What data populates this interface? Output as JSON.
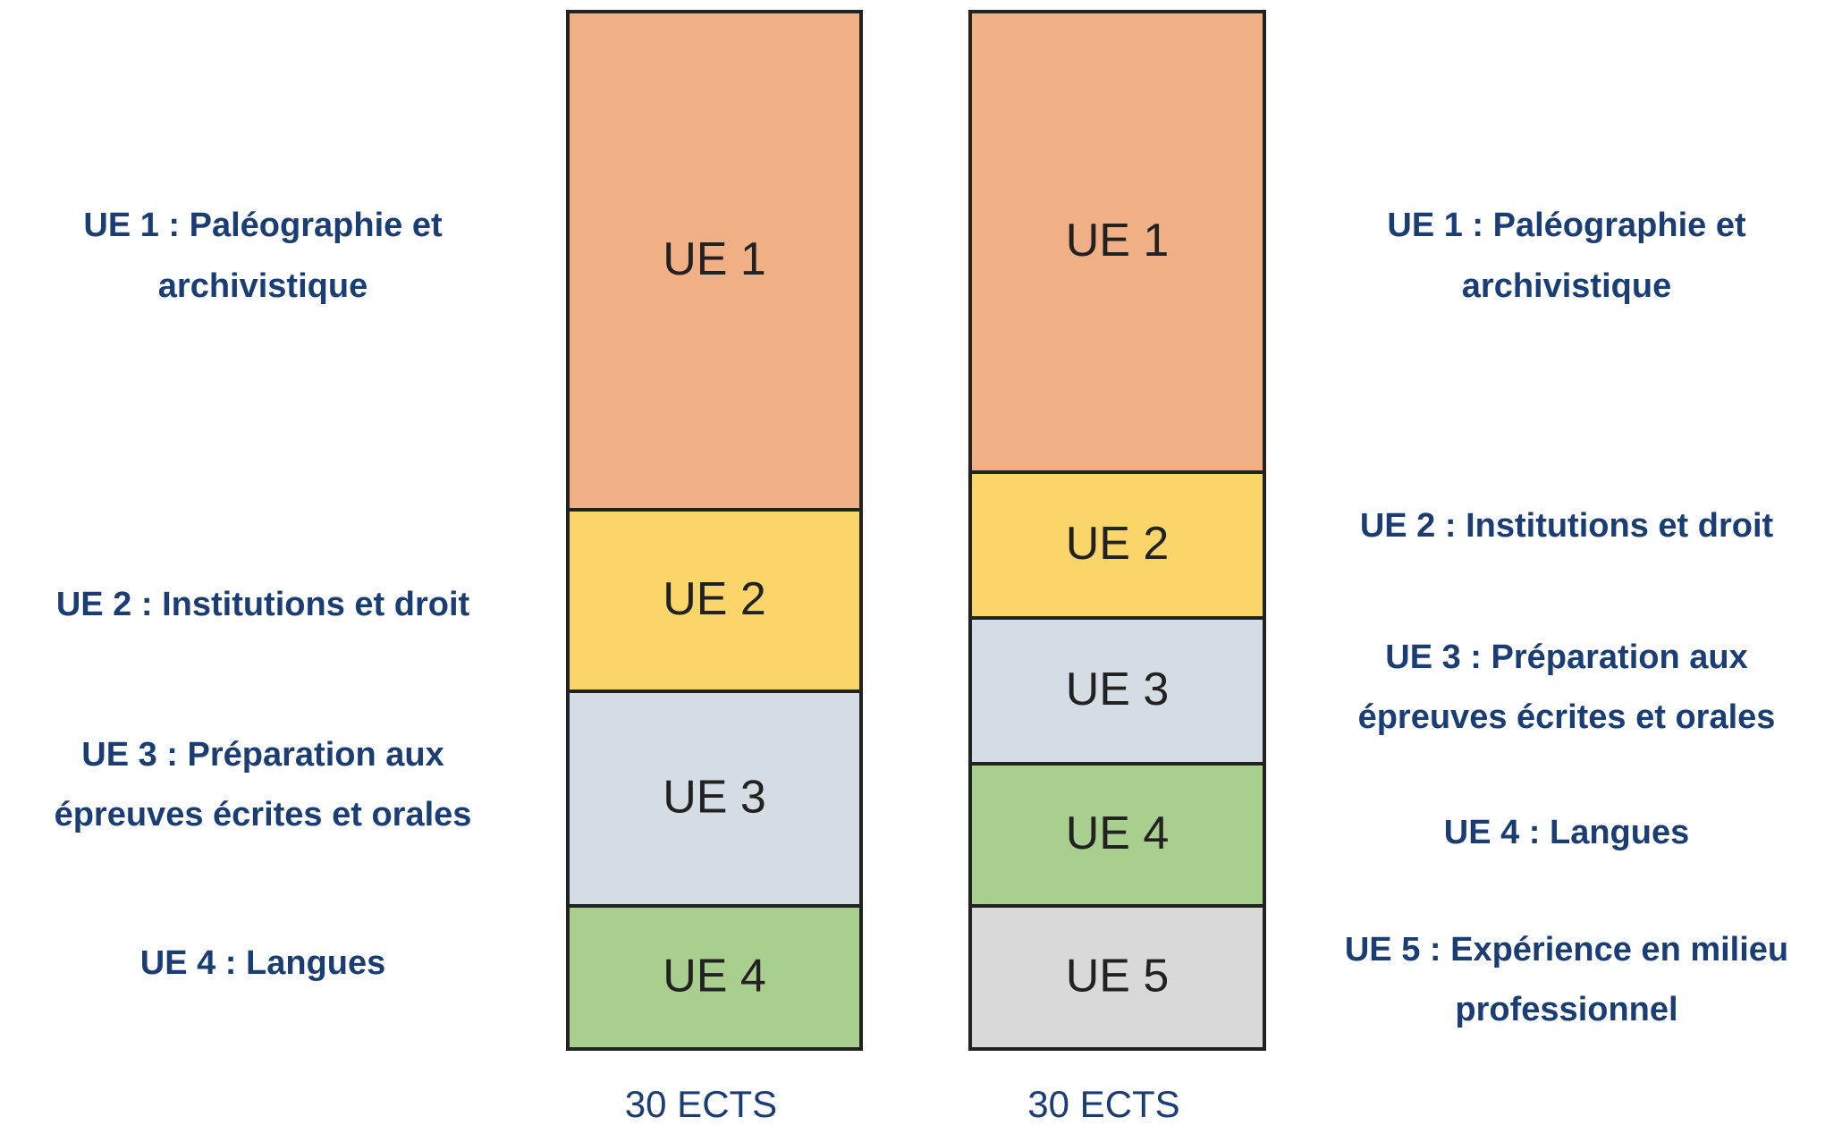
{
  "columns": [
    {
      "blocks": [
        "UE 1",
        "UE 2",
        "UE 3",
        "UE 4"
      ],
      "labels": [
        [
          "UE 1 : Paléographie et",
          "archivistique"
        ],
        [
          "UE 2 : Institutions et droit"
        ],
        [
          "UE 3 : Préparation aux",
          "épreuves écrites et orales"
        ],
        [
          "UE 4 : Langues"
        ]
      ],
      "footer": "30 ECTS"
    },
    {
      "blocks": [
        "UE 1",
        "UE 2",
        "UE 3",
        "UE 4",
        "UE 5"
      ],
      "labels": [
        [
          "UE 1 : Paléographie et",
          "archivistique"
        ],
        [
          "UE 2 : Institutions et droit"
        ],
        [
          "UE 3 : Préparation aux",
          "épreuves écrites et orales"
        ],
        [
          "UE 4 : Langues"
        ],
        [
          "UE 5 : Expérience en milieu",
          "professionnel"
        ]
      ],
      "footer": "30 ECTS"
    }
  ]
}
